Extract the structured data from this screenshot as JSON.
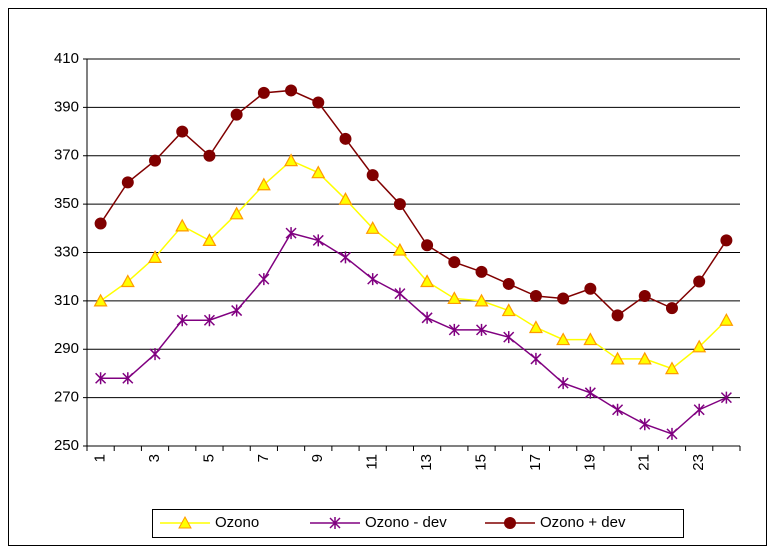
{
  "chart_data": {
    "type": "line",
    "categories": [
      "1",
      null,
      "3",
      null,
      "5",
      null,
      "7",
      null,
      "9",
      null,
      "11",
      null,
      "13",
      null,
      "15",
      null,
      "17",
      null,
      "19",
      null,
      "21",
      null,
      "23",
      null
    ],
    "series": [
      {
        "name": "Ozono",
        "color": "#ffff00",
        "marker": "triangle",
        "values": [
          310,
          318,
          328,
          341,
          335,
          346,
          358,
          368,
          363,
          352,
          340,
          331,
          318,
          311,
          310,
          306,
          299,
          294,
          294,
          286,
          286,
          282,
          291,
          302
        ]
      },
      {
        "name": "Ozono - dev",
        "color": "#800080",
        "marker": "star",
        "values": [
          278,
          278,
          288,
          302,
          302,
          306,
          319,
          338,
          335,
          328,
          319,
          313,
          303,
          298,
          298,
          295,
          286,
          276,
          272,
          265,
          259,
          255,
          265,
          270
        ]
      },
      {
        "name": "Ozono + dev",
        "color": "#800000",
        "marker": "circle",
        "values": [
          342,
          359,
          368,
          380,
          370,
          387,
          396,
          397,
          392,
          377,
          362,
          350,
          333,
          326,
          322,
          317,
          312,
          311,
          315,
          304,
          312,
          307,
          318,
          335
        ]
      }
    ],
    "ylim": [
      250,
      410
    ],
    "yticks": [
      250,
      270,
      290,
      310,
      330,
      350,
      370,
      390,
      410
    ],
    "grid": true,
    "legend": "bottom"
  }
}
